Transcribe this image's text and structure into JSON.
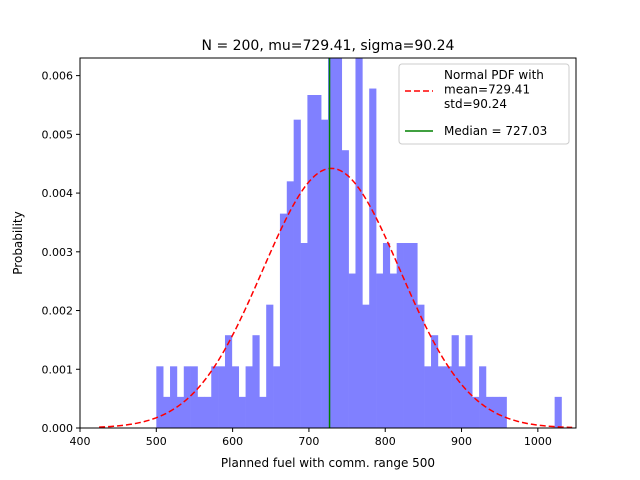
{
  "chart_data": {
    "type": "bar",
    "title": "N = 200, mu=729.41, sigma=90.24",
    "xlabel": "Planned fuel with comm. range 500",
    "ylabel": "Probability",
    "xlim": [
      400,
      1050
    ],
    "ylim": [
      0,
      0.0063
    ],
    "xticks": [
      "400",
      "500",
      "600",
      "700",
      "800",
      "900",
      "1000"
    ],
    "yticks": [
      "0.000",
      "0.001",
      "0.002",
      "0.003",
      "0.004",
      "0.005",
      "0.006"
    ],
    "grid": false,
    "legend_position": "top-right",
    "series": [
      {
        "kind": "histogram",
        "color": "#8080ff",
        "bin_start": 500,
        "bin_width": 9.0,
        "densities": [
          0.00105,
          0.00053,
          0.00105,
          0.00053,
          0.00105,
          0.00105,
          0.00053,
          0.00053,
          0.00105,
          0.00105,
          0.00158,
          0.00105,
          0.00053,
          0.00105,
          0.00158,
          0.00053,
          0.0021,
          0.00105,
          0.00365,
          0.0042,
          0.00525,
          0.00315,
          0.00567,
          0.00567,
          0.00525,
          0.0063,
          0.0063,
          0.00473,
          0.00263,
          0.0063,
          0.0021,
          0.00578,
          0.00263,
          0.00315,
          0.00263,
          0.00315,
          0.00315,
          0.00315,
          0.0021,
          0.00105,
          0.00158,
          0.00105,
          0.00105,
          0.00158,
          0.00105,
          0.00158,
          0.00053,
          0.00105,
          0.00053,
          0.00053,
          0.00053,
          0.0,
          0.0,
          0.0,
          0.0,
          0.0,
          0.0,
          0.0,
          0.00053
        ]
      },
      {
        "name": "Normal PDF with\nmean=729.41\nstd=90.24",
        "kind": "normal-pdf",
        "color": "#ff0000",
        "mean": 729.41,
        "std": 90.24,
        "x_range": [
          425,
          1045
        ]
      },
      {
        "name": "Median = 727.03",
        "kind": "vline",
        "color": "#008000",
        "x": 727.03
      }
    ]
  }
}
